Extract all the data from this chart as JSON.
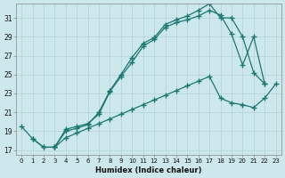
{
  "xlabel": "Humidex (Indice chaleur)",
  "ylabel": "",
  "background_color": "#cde8ec",
  "grid_color": "#b8d5da",
  "line_color": "#1a7870",
  "xlim": [
    -0.5,
    23.5
  ],
  "ylim": [
    16.5,
    32.5
  ],
  "yticks": [
    17,
    19,
    21,
    23,
    25,
    27,
    29,
    31
  ],
  "xticks": [
    0,
    1,
    2,
    3,
    4,
    5,
    6,
    7,
    8,
    9,
    10,
    11,
    12,
    13,
    14,
    15,
    16,
    17,
    18,
    19,
    20,
    21,
    22,
    23
  ],
  "line1_x": [
    0,
    1,
    2,
    3,
    4,
    5,
    6,
    7,
    8,
    9,
    10,
    11,
    12,
    13,
    14,
    15,
    16,
    17,
    18,
    19,
    20,
    21,
    22
  ],
  "line1_y": [
    19.5,
    18.2,
    17.3,
    17.3,
    19.2,
    19.5,
    19.8,
    20.8,
    23.2,
    24.8,
    26.3,
    28.0,
    28.7,
    30.0,
    30.5,
    30.8,
    31.2,
    31.8,
    31.3,
    29.3,
    26.0,
    29.0,
    24.0
  ],
  "line2_x": [
    3,
    4,
    5,
    6,
    7,
    8,
    9,
    10,
    11,
    12,
    13,
    14,
    15,
    16,
    17,
    18,
    19,
    20,
    21,
    22
  ],
  "line2_y": [
    17.3,
    19.0,
    19.3,
    19.7,
    21.0,
    23.3,
    25.0,
    26.8,
    28.3,
    28.9,
    30.3,
    30.8,
    31.2,
    31.8,
    32.5,
    31.0,
    31.0,
    29.0,
    25.2,
    24.0
  ],
  "line3_x": [
    1,
    2,
    3,
    4,
    5,
    6,
    7,
    8,
    9,
    10,
    11,
    12,
    13,
    14,
    15,
    16,
    17,
    18,
    19,
    20,
    21,
    22,
    23
  ],
  "line3_y": [
    18.2,
    17.3,
    17.3,
    18.3,
    18.8,
    19.3,
    19.8,
    20.3,
    20.8,
    21.3,
    21.8,
    22.3,
    22.8,
    23.3,
    23.8,
    24.3,
    24.8,
    22.5,
    22.0,
    21.8,
    21.5,
    22.5,
    24.0
  ]
}
